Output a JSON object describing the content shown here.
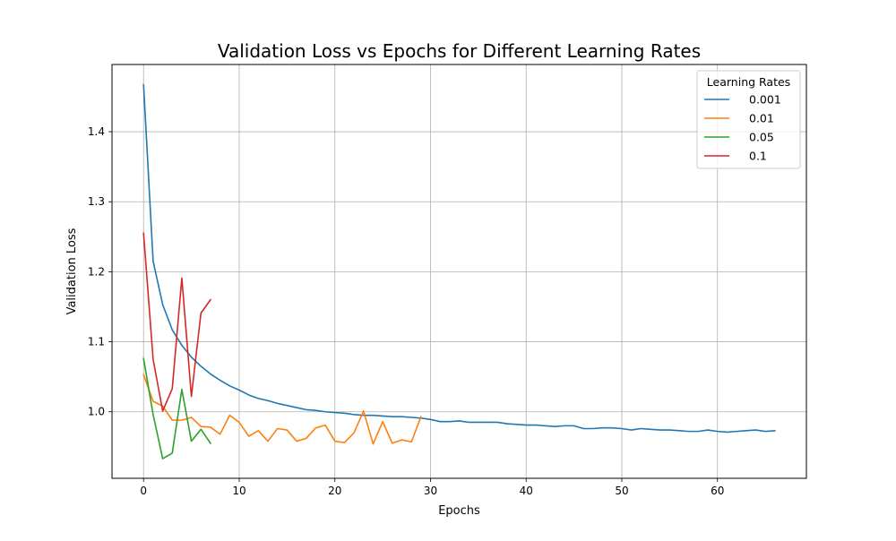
{
  "chart_data": {
    "type": "line",
    "title": "Validation Loss vs Epochs for Different Learning Rates",
    "xlabel": "Epochs",
    "ylabel": "Validation Loss",
    "xlim": [
      -3.3,
      69.3
    ],
    "ylim": [
      0.905,
      1.496
    ],
    "x_ticks": [
      0,
      10,
      20,
      30,
      40,
      50,
      60
    ],
    "y_ticks": [
      1.0,
      1.1,
      1.2,
      1.3,
      1.4
    ],
    "grid": true,
    "legend": {
      "title": "Learning Rates",
      "position": "top-right"
    },
    "series": [
      {
        "name": "0.001",
        "color": "#1f77b4",
        "x": [
          0,
          1,
          2,
          3,
          4,
          5,
          6,
          7,
          8,
          9,
          10,
          11,
          12,
          13,
          14,
          15,
          16,
          17,
          18,
          19,
          20,
          21,
          22,
          23,
          24,
          25,
          26,
          27,
          28,
          29,
          30,
          31,
          32,
          33,
          34,
          35,
          36,
          37,
          38,
          39,
          40,
          41,
          42,
          43,
          44,
          45,
          46,
          47,
          48,
          49,
          50,
          51,
          52,
          53,
          54,
          55,
          56,
          57,
          58,
          59,
          60,
          61,
          62,
          63,
          64,
          65,
          66
        ],
        "values": [
          1.467,
          1.215,
          1.153,
          1.117,
          1.095,
          1.078,
          1.065,
          1.054,
          1.045,
          1.037,
          1.031,
          1.024,
          1.019,
          1.016,
          1.012,
          1.009,
          1.006,
          1.003,
          1.002,
          1.0,
          0.999,
          0.998,
          0.996,
          0.995,
          0.995,
          0.994,
          0.993,
          0.993,
          0.992,
          0.991,
          0.989,
          0.986,
          0.986,
          0.987,
          0.985,
          0.985,
          0.985,
          0.985,
          0.983,
          0.982,
          0.981,
          0.981,
          0.98,
          0.979,
          0.98,
          0.98,
          0.976,
          0.976,
          0.977,
          0.977,
          0.976,
          0.974,
          0.976,
          0.975,
          0.974,
          0.974,
          0.973,
          0.972,
          0.972,
          0.974,
          0.972,
          0.971,
          0.972,
          0.973,
          0.974,
          0.972,
          0.973
        ]
      },
      {
        "name": "0.01",
        "color": "#ff7f0e",
        "x": [
          0,
          1,
          2,
          3,
          4,
          5,
          6,
          7,
          8,
          9,
          10,
          11,
          12,
          13,
          14,
          15,
          16,
          17,
          18,
          19,
          20,
          21,
          22,
          23,
          24,
          25,
          26,
          27,
          28,
          29
        ],
        "values": [
          1.053,
          1.015,
          1.008,
          0.988,
          0.988,
          0.992,
          0.979,
          0.978,
          0.968,
          0.995,
          0.985,
          0.965,
          0.973,
          0.958,
          0.976,
          0.974,
          0.958,
          0.962,
          0.977,
          0.981,
          0.958,
          0.956,
          0.97,
          1.001,
          0.954,
          0.986,
          0.955,
          0.96,
          0.957,
          0.993
        ]
      },
      {
        "name": "0.05",
        "color": "#2ca02c",
        "x": [
          0,
          1,
          2,
          3,
          4,
          5,
          6,
          7
        ],
        "values": [
          1.076,
          0.996,
          0.933,
          0.941,
          1.032,
          0.958,
          0.975,
          0.955
        ]
      },
      {
        "name": "0.1",
        "color": "#d62728",
        "x": [
          0,
          1,
          2,
          3,
          4,
          5,
          6,
          7
        ],
        "values": [
          1.255,
          1.075,
          1.001,
          1.033,
          1.191,
          1.022,
          1.141,
          1.16
        ]
      }
    ]
  }
}
